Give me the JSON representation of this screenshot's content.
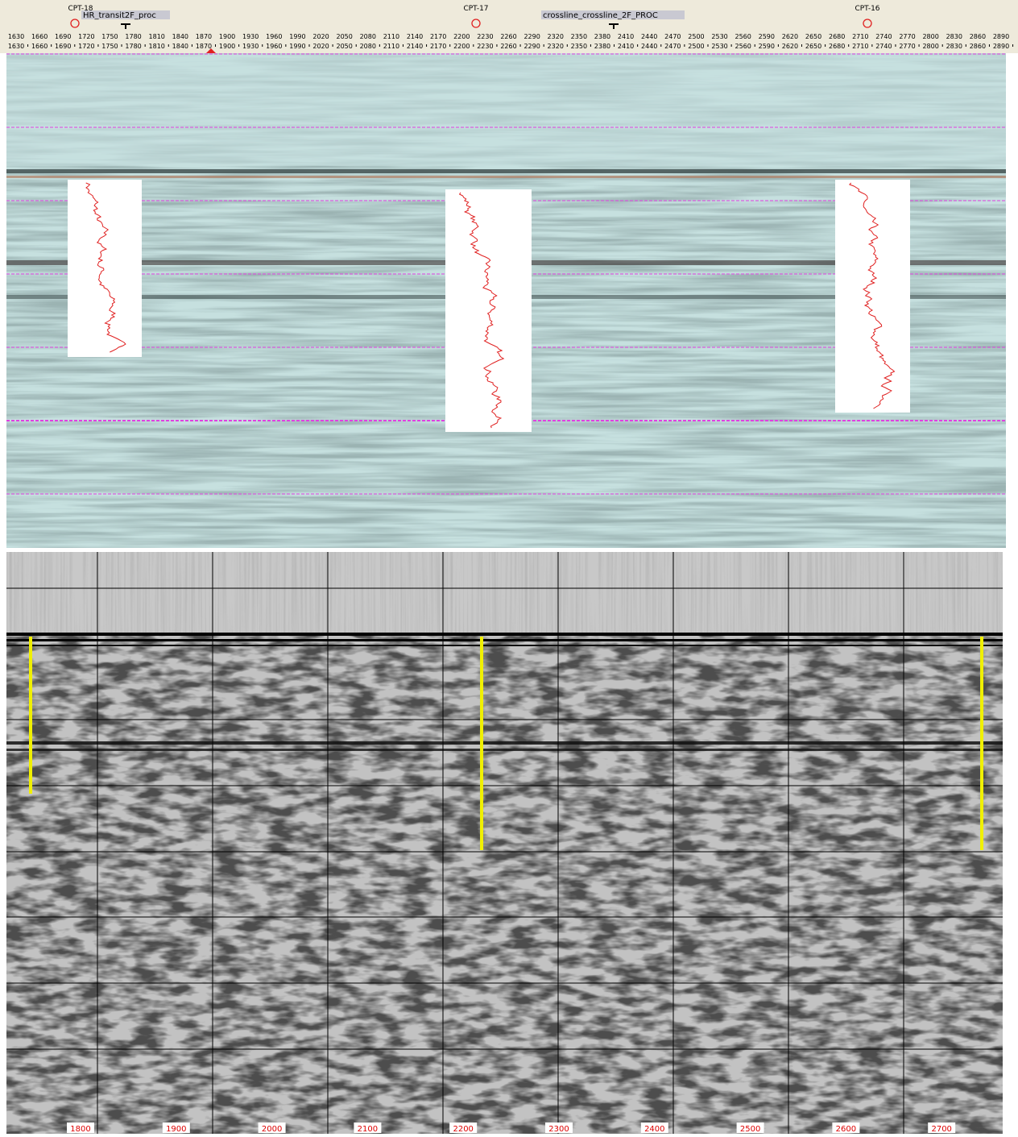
{
  "ruler": {
    "markers": [
      "CPT-18",
      "CPT-17",
      "CPT-16"
    ],
    "lines": [
      "HR_transit2F_proc",
      "crossline_crossline_2F_PROC"
    ],
    "ticks": [
      1630,
      1660,
      1690,
      1720,
      1750,
      1780,
      1810,
      1840,
      1870,
      1900,
      1930,
      1960,
      1990,
      2020,
      2050,
      2080,
      2110,
      2140,
      2170,
      2200,
      2230,
      2260,
      2290,
      2320,
      2350,
      2380,
      2410,
      2440,
      2470,
      2500,
      2530,
      2560,
      2590,
      2620,
      2650,
      2680,
      2710,
      2740,
      2770,
      2800,
      2830,
      2860,
      2890
    ]
  },
  "section": {
    "trace_labels": [
      1800,
      1900,
      2000,
      2100,
      2200,
      2300,
      2400,
      2500,
      2600,
      2700
    ]
  }
}
